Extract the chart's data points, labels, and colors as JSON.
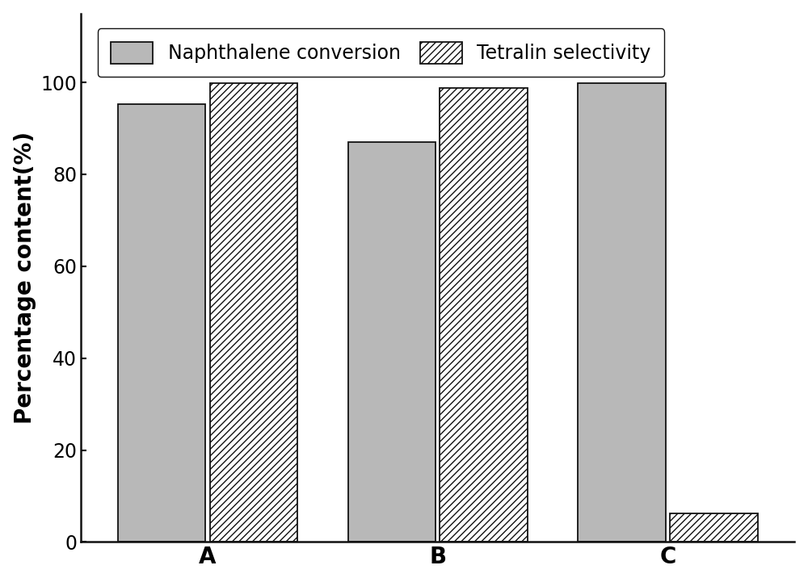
{
  "categories": [
    "A",
    "B",
    "C"
  ],
  "naphthalene_conversion": [
    95.2,
    87.0,
    99.8
  ],
  "tetralin_selectivity": [
    99.8,
    98.8,
    6.2
  ],
  "bar_color_solid": "#b8b8b8",
  "hatch_pattern": "////",
  "bar_width": 0.38,
  "bar_gap": 0.02,
  "group_positions": [
    1.0,
    2.0,
    3.0
  ],
  "ylabel": "Percentage content(%)",
  "ylim": [
    0,
    115
  ],
  "yticks": [
    0,
    20,
    40,
    60,
    80,
    100
  ],
  "legend_label_solid": "Naphthalene conversion",
  "legend_label_hatch": "Tetralin selectivity",
  "axis_label_fontsize": 20,
  "tick_fontsize": 17,
  "legend_fontsize": 17,
  "category_fontsize": 20,
  "background_color": "#ffffff",
  "edge_color": "#111111"
}
